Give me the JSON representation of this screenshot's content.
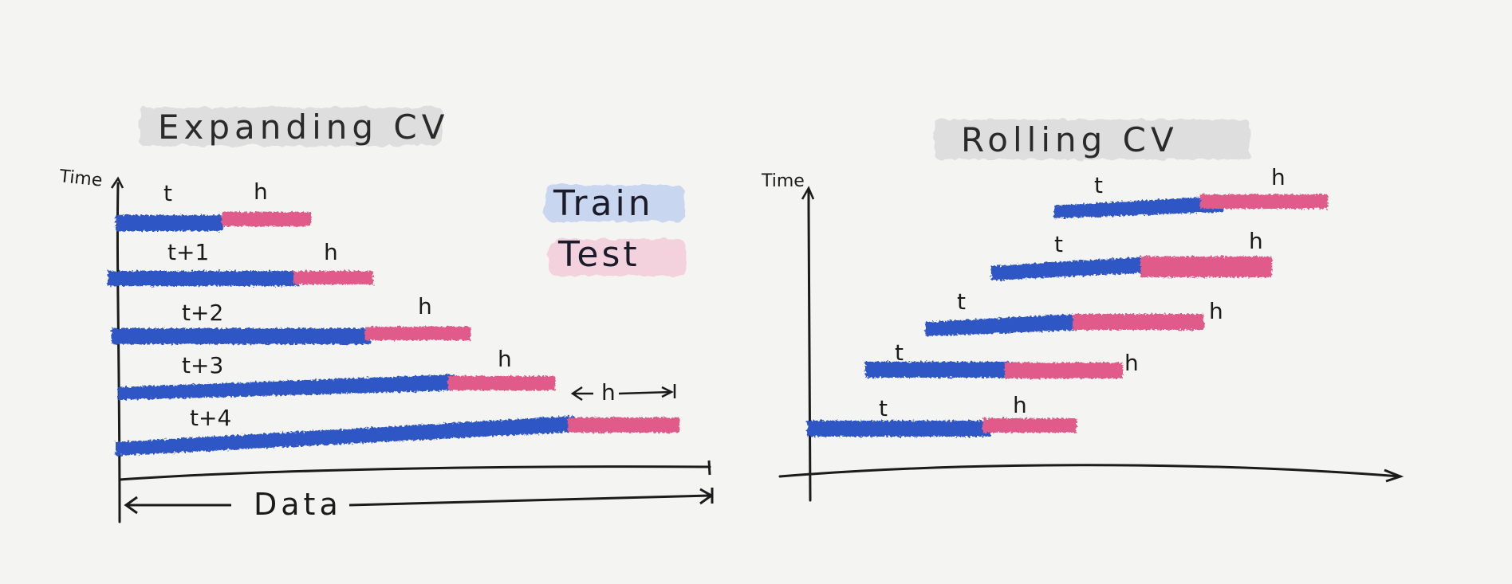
{
  "colors": {
    "train": "#2f57c4",
    "test": "#e05a8a",
    "train_legend_bg": "#c9d6ef",
    "test_legend_bg": "#f3d2dd",
    "title_bg": "#dedede",
    "ink": "#1b1b1b"
  },
  "expanding": {
    "title": "Expanding CV",
    "y_axis_label": "Time",
    "x_axis_label": "Data",
    "h_span_label": "h",
    "rows": [
      {
        "train_label": "t",
        "test_label": "h"
      },
      {
        "train_label": "t+1",
        "test_label": "h"
      },
      {
        "train_label": "t+2",
        "test_label": "h"
      },
      {
        "train_label": "t+3",
        "test_label": "h"
      },
      {
        "train_label": "t+4",
        "test_label": ""
      }
    ]
  },
  "legend": {
    "train": "Train",
    "test": "Test"
  },
  "rolling": {
    "title": "Rolling CV",
    "y_axis_label": "Time",
    "rows": [
      {
        "train_label": "t",
        "test_label": "h"
      },
      {
        "train_label": "t",
        "test_label": "h"
      },
      {
        "train_label": "t",
        "test_label": "h"
      },
      {
        "train_label": "t",
        "test_label": "h"
      },
      {
        "train_label": "t",
        "test_label": "h"
      }
    ]
  }
}
